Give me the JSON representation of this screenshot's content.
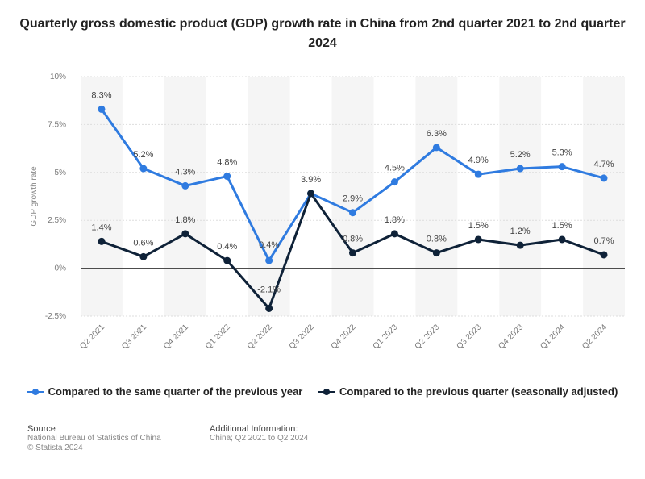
{
  "title": "Quarterly gross domestic product (GDP) growth rate in China from 2nd quarter 2021 to 2nd quarter 2024",
  "colors": {
    "series1": "#2f7be0",
    "series2": "#0f2238"
  },
  "chart_data": {
    "type": "line",
    "categories": [
      "Q2 2021",
      "Q3 2021",
      "Q4 2021",
      "Q1 2022",
      "Q2 2022",
      "Q3 2022",
      "Q4 2022",
      "Q1 2023",
      "Q2 2023",
      "Q3 2023",
      "Q4 2023",
      "Q1 2024",
      "Q2 2024"
    ],
    "series": [
      {
        "name": "Compared to the same quarter of the previous year",
        "values": [
          8.3,
          5.2,
          4.3,
          4.8,
          0.4,
          3.9,
          2.9,
          4.5,
          6.3,
          4.9,
          5.2,
          5.3,
          4.7
        ],
        "labels": [
          "8.3%",
          "5.2%",
          "4.3%",
          "4.8%",
          "0.4%",
          "3.9%",
          "2.9%",
          "4.5%",
          "6.3%",
          "4.9%",
          "5.2%",
          "5.3%",
          "4.7%"
        ]
      },
      {
        "name": "Compared to the previous quarter (seasonally adjusted)",
        "values": [
          1.4,
          0.6,
          1.8,
          0.4,
          -2.1,
          3.9,
          0.8,
          1.8,
          0.8,
          1.5,
          1.2,
          1.5,
          0.7
        ],
        "labels": [
          "1.4%",
          "0.6%",
          "1.8%",
          "0.4%",
          "-2.1%",
          "",
          "0.8%",
          "1.8%",
          "0.8%",
          "1.5%",
          "1.2%",
          "1.5%",
          "0.7%"
        ]
      }
    ],
    "ylabel": "GDP growth rate",
    "ylim": [
      -2.5,
      10
    ],
    "yticks": [
      10,
      7.5,
      5,
      2.5,
      0,
      -2.5
    ],
    "ytick_labels": [
      "10%",
      "7.5%",
      "5%",
      "2.5%",
      "0%",
      "-2.5%"
    ],
    "legend_position": "bottom"
  },
  "footer": {
    "source_heading": "Source",
    "source_line1": "National Bureau of Statistics of China",
    "source_line2": "© Statista 2024",
    "info_heading": "Additional Information:",
    "info_line1": "China; Q2 2021 to Q2 2024"
  }
}
